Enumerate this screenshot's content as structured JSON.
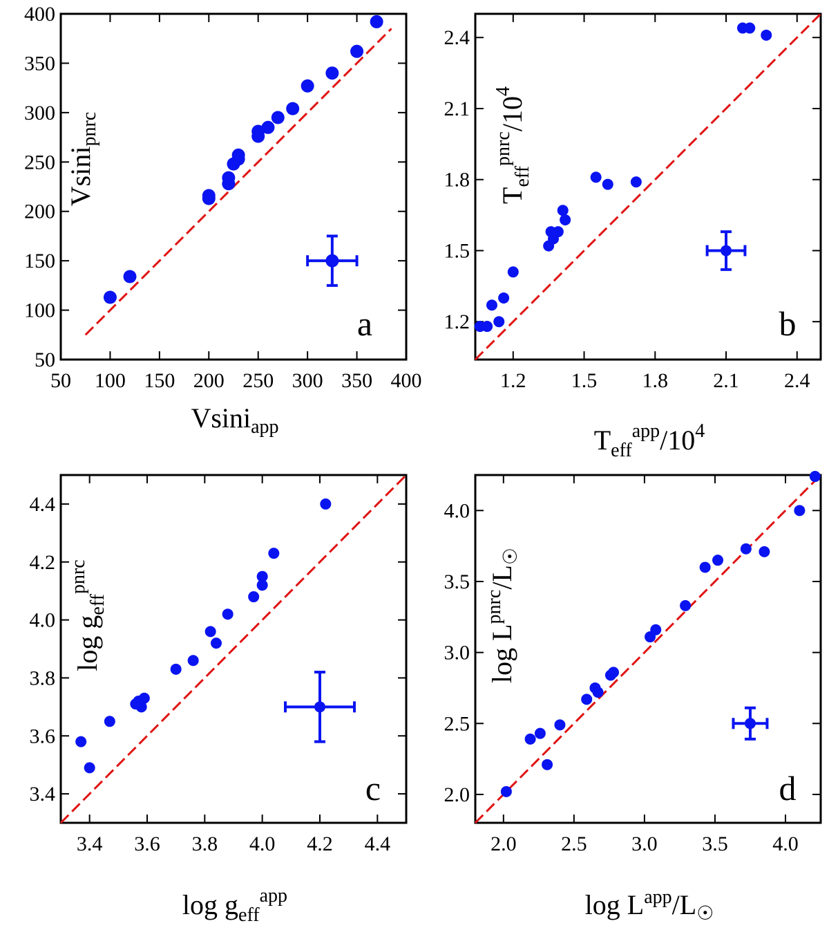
{
  "colors": {
    "points": "#0a14f0",
    "diagonal": "#e01414",
    "frame": "#000000"
  },
  "chart_data": [
    {
      "type": "scatter",
      "panel": "a",
      "xlabel": "Vsini_app",
      "ylabel": "Vsini_pnrc",
      "xlabel_parts": [
        "Vsini",
        "app"
      ],
      "ylabel_parts": [
        "Vsini",
        "pnrc"
      ],
      "xlim": [
        50,
        400
      ],
      "ylim": [
        50,
        400
      ],
      "xticks": [
        50,
        100,
        150,
        200,
        250,
        300,
        350,
        400
      ],
      "yticks": [
        50,
        100,
        150,
        200,
        250,
        300,
        350,
        400
      ],
      "xtick_labels": [
        "50",
        "100",
        "150",
        "200",
        "250",
        "300",
        "350",
        "400"
      ],
      "ytick_labels": [
        "50",
        "100",
        "150",
        "200",
        "250",
        "300",
        "350",
        "400"
      ],
      "diagonal": [
        75,
        385
      ],
      "points": [
        [
          100,
          113
        ],
        [
          120,
          134
        ],
        [
          200,
          213
        ],
        [
          200,
          216
        ],
        [
          220,
          228
        ],
        [
          220,
          234
        ],
        [
          225,
          248
        ],
        [
          230,
          253
        ],
        [
          230,
          257
        ],
        [
          250,
          276
        ],
        [
          250,
          281
        ],
        [
          260,
          285
        ],
        [
          270,
          295
        ],
        [
          285,
          304
        ],
        [
          300,
          327
        ],
        [
          325,
          340
        ],
        [
          350,
          362
        ],
        [
          370,
          392
        ]
      ],
      "error_bar": {
        "x": 325,
        "y": 150,
        "xerr": 25,
        "yerr": 25
      }
    },
    {
      "type": "scatter",
      "panel": "b",
      "xlabel": "Teff^app/10^4",
      "ylabel": "Teff^pnrc/10^4",
      "xlim": [
        1.04,
        2.5
      ],
      "ylim": [
        1.04,
        2.5
      ],
      "xticks": [
        1.2,
        1.5,
        1.8,
        2.1,
        2.4
      ],
      "yticks": [
        1.2,
        1.5,
        1.8,
        2.1,
        2.4
      ],
      "xtick_labels": [
        "1.2",
        "1.5",
        "1.8",
        "2.1",
        "2.4"
      ],
      "ytick_labels": [
        "1.2",
        "1.5",
        "1.8",
        "2.1",
        "2.4"
      ],
      "diagonal": [
        1.04,
        2.5
      ],
      "points": [
        [
          1.06,
          1.18
        ],
        [
          1.09,
          1.18
        ],
        [
          1.11,
          1.27
        ],
        [
          1.14,
          1.2
        ],
        [
          1.16,
          1.3
        ],
        [
          1.2,
          1.41
        ],
        [
          1.35,
          1.52
        ],
        [
          1.36,
          1.58
        ],
        [
          1.37,
          1.55
        ],
        [
          1.39,
          1.58
        ],
        [
          1.41,
          1.67
        ],
        [
          1.42,
          1.63
        ],
        [
          1.55,
          1.81
        ],
        [
          1.6,
          1.78
        ],
        [
          1.72,
          1.79
        ],
        [
          2.17,
          2.44
        ],
        [
          2.2,
          2.44
        ],
        [
          2.27,
          2.41
        ]
      ],
      "error_bar": {
        "x": 2.1,
        "y": 1.5,
        "xerr": 0.08,
        "yerr": 0.08
      }
    },
    {
      "type": "scatter",
      "panel": "c",
      "xlabel": "log g_eff^app",
      "ylabel": "log g_eff^pnrc",
      "xlim": [
        3.3,
        4.5
      ],
      "ylim": [
        3.3,
        4.5
      ],
      "xticks": [
        3.4,
        3.6,
        3.8,
        4.0,
        4.2,
        4.4
      ],
      "yticks": [
        3.4,
        3.6,
        3.8,
        4.0,
        4.2,
        4.4
      ],
      "xtick_labels": [
        "3.4",
        "3.6",
        "3.8",
        "4.0",
        "4.2",
        "4.4"
      ],
      "ytick_labels": [
        "3.4",
        "3.6",
        "3.8",
        "4.0",
        "4.2",
        "4.4"
      ],
      "diagonal": [
        3.3,
        4.5
      ],
      "points": [
        [
          3.37,
          3.58
        ],
        [
          3.4,
          3.49
        ],
        [
          3.47,
          3.65
        ],
        [
          3.56,
          3.71
        ],
        [
          3.57,
          3.72
        ],
        [
          3.58,
          3.7
        ],
        [
          3.59,
          3.73
        ],
        [
          3.7,
          3.83
        ],
        [
          3.76,
          3.86
        ],
        [
          3.82,
          3.96
        ],
        [
          3.84,
          3.92
        ],
        [
          3.88,
          4.02
        ],
        [
          3.97,
          4.08
        ],
        [
          4.0,
          4.12
        ],
        [
          4.0,
          4.15
        ],
        [
          4.04,
          4.23
        ],
        [
          4.22,
          4.4
        ]
      ],
      "error_bar": {
        "x": 4.2,
        "y": 3.7,
        "xerr": 0.12,
        "yerr": 0.12
      }
    },
    {
      "type": "scatter",
      "panel": "d",
      "xlabel": "log L^app/L☉",
      "ylabel": "log L^pnrc/L☉",
      "xlim": [
        1.8,
        4.25
      ],
      "ylim": [
        1.8,
        4.25
      ],
      "xticks": [
        2.0,
        2.5,
        3.0,
        3.5,
        4.0
      ],
      "yticks": [
        2.0,
        2.5,
        3.0,
        3.5,
        4.0
      ],
      "xtick_labels": [
        "2.0",
        "2.5",
        "3.0",
        "3.5",
        "4.0"
      ],
      "ytick_labels": [
        "2.0",
        "2.5",
        "3.0",
        "3.5",
        "4.0"
      ],
      "diagonal": [
        1.8,
        4.25
      ],
      "points": [
        [
          2.02,
          2.02
        ],
        [
          2.19,
          2.39
        ],
        [
          2.26,
          2.43
        ],
        [
          2.31,
          2.21
        ],
        [
          2.4,
          2.49
        ],
        [
          2.59,
          2.67
        ],
        [
          2.65,
          2.75
        ],
        [
          2.67,
          2.72
        ],
        [
          2.76,
          2.84
        ],
        [
          2.78,
          2.86
        ],
        [
          3.04,
          3.11
        ],
        [
          3.08,
          3.16
        ],
        [
          3.29,
          3.33
        ],
        [
          3.43,
          3.6
        ],
        [
          3.52,
          3.65
        ],
        [
          3.72,
          3.73
        ],
        [
          3.85,
          3.71
        ],
        [
          4.1,
          4.0
        ],
        [
          4.21,
          4.24
        ]
      ],
      "error_bar": {
        "x": 3.75,
        "y": 2.5,
        "xerr": 0.12,
        "yerr": 0.11
      }
    }
  ]
}
